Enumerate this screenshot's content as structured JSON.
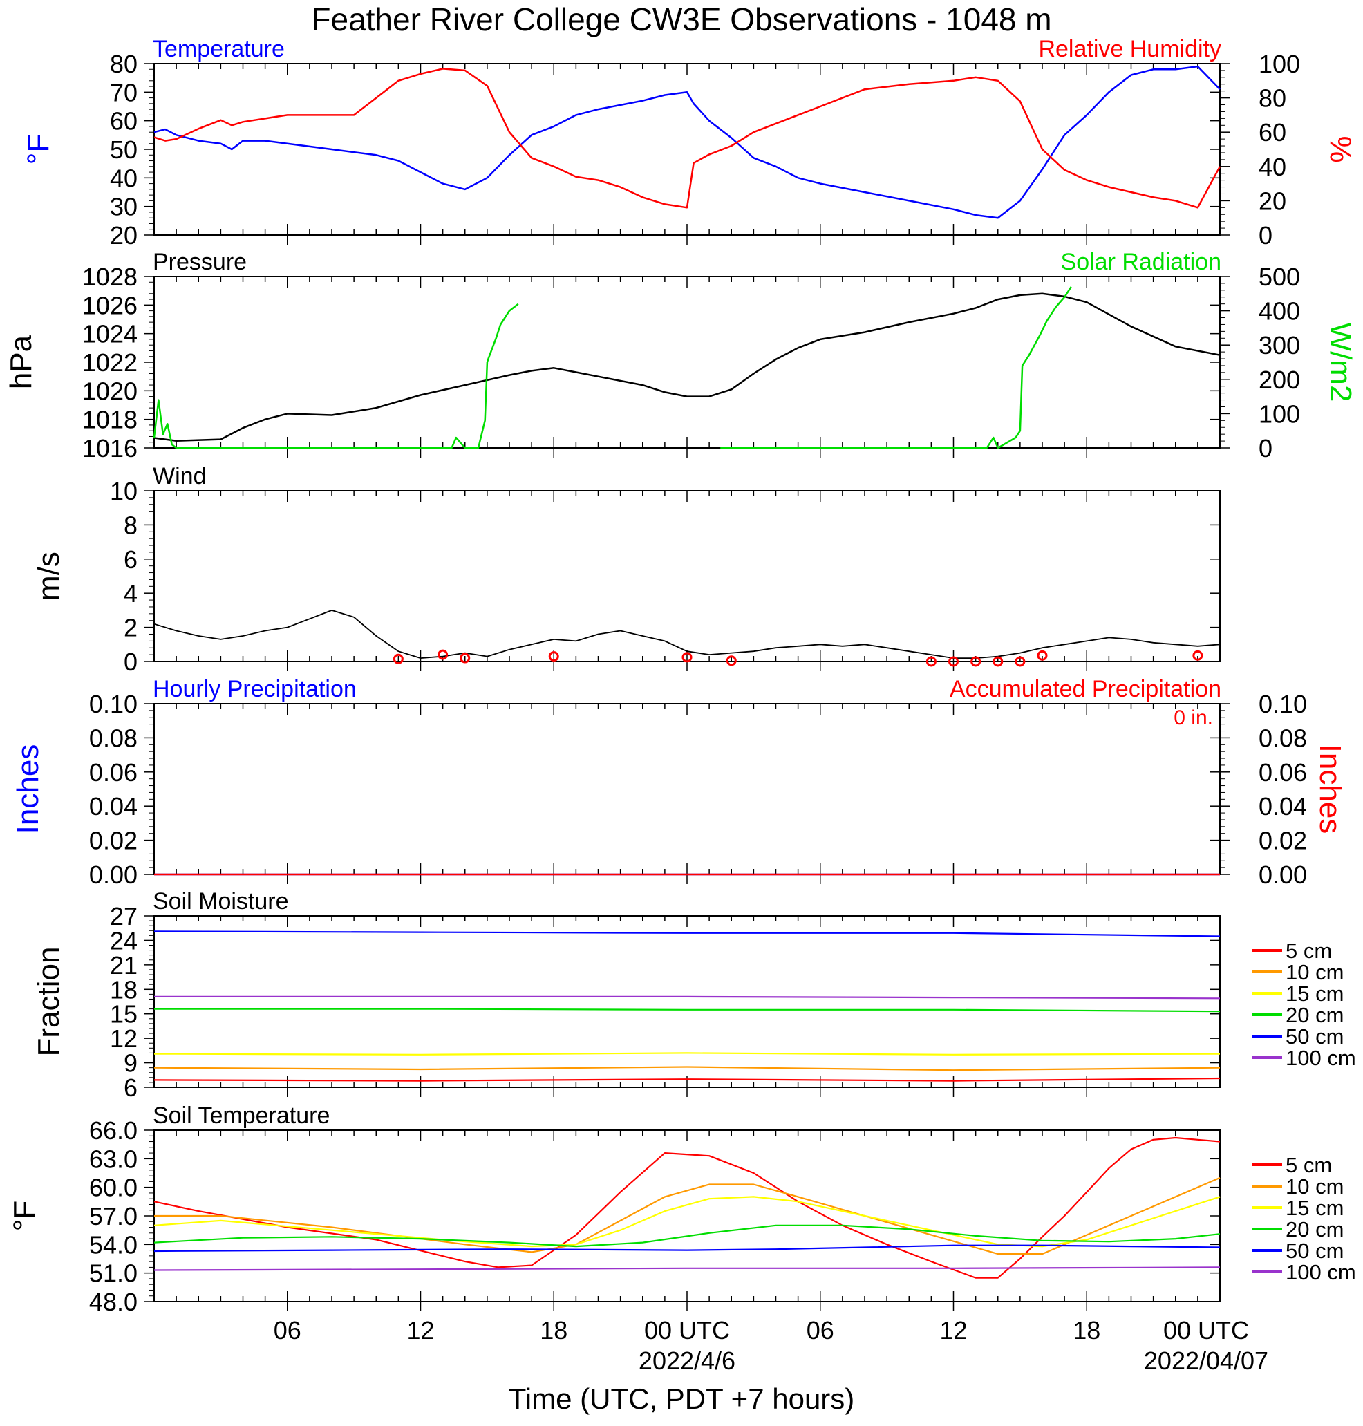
{
  "page": {
    "title": "Feather River College CW3E Observations - 1048 m",
    "xaxis_title": "Time (UTC, PDT +7 hours)",
    "x_ticks": [
      "06",
      "12",
      "18",
      "00 UTC",
      "06",
      "12",
      "18",
      "00 UTC"
    ],
    "date_labels": [
      "2022/4/6",
      "2022/04/07"
    ]
  },
  "colors": {
    "blue": "#0000ff",
    "red": "#ff0000",
    "green": "#00dd00",
    "black": "#000000",
    "orange": "#ff9900",
    "yellow": "#ffff00",
    "purple": "#9933cc"
  },
  "chart_data": [
    {
      "type": "line",
      "panel": "temperature_rh",
      "title_left": "Temperature",
      "title_right": "Relative Humidity",
      "ylabel_left": "°F",
      "ylabel_right": "%",
      "x_range_hours_utc": [
        0,
        48
      ],
      "ylim_left": [
        20,
        80
      ],
      "yticks_left": [
        20,
        30,
        40,
        50,
        60,
        70,
        80
      ],
      "ylim_right": [
        0,
        100
      ],
      "yticks_right": [
        0,
        20,
        40,
        60,
        80,
        100
      ],
      "series": [
        {
          "name": "Temperature",
          "axis": "left",
          "color": "#0000ff",
          "x": [
            0,
            0.5,
            1,
            2,
            3,
            3.5,
            4,
            5,
            6,
            8,
            10,
            11,
            12,
            13,
            14,
            15,
            16,
            17,
            18,
            19,
            20,
            22,
            23,
            24,
            24.3,
            25,
            26,
            27,
            28,
            29,
            30,
            32,
            34,
            36,
            37,
            38,
            39,
            40,
            41,
            42,
            43,
            44,
            45,
            46,
            47,
            48
          ],
          "y": [
            56,
            57,
            55,
            53,
            52,
            50,
            53,
            53,
            52,
            50,
            48,
            46,
            42,
            38,
            36,
            40,
            48,
            55,
            58,
            62,
            64,
            67,
            69,
            70,
            66,
            60,
            54,
            47,
            44,
            40,
            38,
            35,
            32,
            29,
            27,
            26,
            32,
            43,
            55,
            62,
            70,
            76,
            78,
            78,
            79,
            71
          ]
        },
        {
          "name": "Relative Humidity",
          "axis": "right",
          "color": "#ff0000",
          "x": [
            0,
            0.5,
            1,
            2,
            3,
            3.5,
            4,
            5,
            6,
            8,
            9,
            10,
            11,
            12,
            13,
            14,
            15,
            16,
            17,
            18,
            19,
            20,
            21,
            22,
            23,
            24,
            24.3,
            25,
            26,
            27,
            28,
            29,
            30,
            32,
            34,
            36,
            37,
            38,
            39,
            40,
            41,
            42,
            43,
            44,
            45,
            46,
            47,
            48
          ],
          "y": [
            57,
            55,
            56,
            62,
            67,
            64,
            66,
            68,
            70,
            70,
            70,
            80,
            90,
            94,
            97,
            96,
            87,
            60,
            45,
            40,
            34,
            32,
            28,
            22,
            18,
            16,
            42,
            47,
            52,
            60,
            65,
            70,
            75,
            85,
            88,
            90,
            92,
            90,
            78,
            50,
            38,
            32,
            28,
            25,
            22,
            20,
            16,
            40
          ]
        }
      ]
    },
    {
      "type": "line",
      "panel": "pressure_solar",
      "title_left": "Pressure",
      "title_right": "Solar Radiation",
      "ylabel_left": "hPa",
      "ylabel_right": "W/m2",
      "ylim_left": [
        1016,
        1028
      ],
      "yticks_left": [
        1016,
        1018,
        1020,
        1022,
        1024,
        1026,
        1028
      ],
      "ylim_right": [
        0,
        500
      ],
      "yticks_right": [
        0,
        100,
        200,
        300,
        400,
        500
      ],
      "series": [
        {
          "name": "Pressure",
          "axis": "left",
          "color": "#000000",
          "x": [
            0,
            1,
            3,
            4,
            5,
            6,
            8,
            10,
            12,
            14,
            16,
            17,
            18,
            19,
            20,
            22,
            23,
            24,
            25,
            26,
            27,
            28,
            29,
            30,
            32,
            34,
            36,
            37,
            38,
            39,
            40,
            41,
            42,
            44,
            46,
            48
          ],
          "y": [
            1016.7,
            1016.5,
            1016.6,
            1017.4,
            1018.0,
            1018.4,
            1018.3,
            1018.8,
            1019.7,
            1020.4,
            1021.1,
            1021.4,
            1021.6,
            1021.3,
            1021.0,
            1020.4,
            1019.9,
            1019.6,
            1019.6,
            1020.1,
            1021.2,
            1022.2,
            1023.0,
            1023.6,
            1024.1,
            1024.8,
            1025.4,
            1025.8,
            1026.4,
            1026.7,
            1026.8,
            1026.6,
            1026.2,
            1024.5,
            1023.1,
            1022.5
          ]
        },
        {
          "name": "Solar Radiation",
          "axis": "right",
          "color": "#00dd00",
          "segments": [
            {
              "x": [
                0,
                0.2,
                0.4,
                0.6,
                0.8,
                1.0,
                2.0,
                6,
                12,
                13.4,
                13.6,
                14.0,
                14.6,
                14.9,
                15.0,
                15.05,
                15.4,
                15.6,
                16.0,
                16.4
              ],
              "y": [
                30,
                140,
                40,
                70,
                10,
                0,
                0,
                0,
                0,
                0,
                30,
                0,
                0,
                80,
                250,
                260,
                320,
                360,
                400,
                420
              ]
            },
            {
              "x": [
                25.5,
                30,
                35,
                37.5,
                37.8,
                38.0,
                38.8,
                39.0,
                39.1,
                39.4,
                39.9,
                40.2,
                40.6,
                41.0,
                41.3
              ],
              "y": [
                0,
                0,
                0,
                0,
                30,
                0,
                30,
                50,
                240,
                270,
                330,
                370,
                410,
                440,
                470
              ]
            }
          ]
        }
      ]
    },
    {
      "type": "line",
      "panel": "wind",
      "title_left": "Wind",
      "ylabel_left": "m/s",
      "ylim_left": [
        0,
        10
      ],
      "yticks_left": [
        0,
        2,
        4,
        6,
        8,
        10
      ],
      "series": [
        {
          "name": "Wind Speed",
          "axis": "left",
          "color": "#000000",
          "x": [
            0,
            1,
            2,
            3,
            4,
            5,
            6,
            7,
            8,
            9,
            10,
            11,
            12,
            13,
            14,
            15,
            16,
            17,
            18,
            19,
            20,
            21,
            22,
            23,
            24,
            25,
            26,
            27,
            28,
            29,
            30,
            31,
            32,
            33,
            34,
            35,
            36,
            37,
            38,
            39,
            40,
            41,
            42,
            43,
            44,
            45,
            46,
            47,
            48
          ],
          "y": [
            2.2,
            1.8,
            1.5,
            1.3,
            1.5,
            1.8,
            2.0,
            2.5,
            3.0,
            2.6,
            1.5,
            0.6,
            0.2,
            0.3,
            0.5,
            0.3,
            0.7,
            1.0,
            1.3,
            1.2,
            1.6,
            1.8,
            1.5,
            1.2,
            0.6,
            0.4,
            0.5,
            0.6,
            0.8,
            0.9,
            1.0,
            0.9,
            1.0,
            0.8,
            0.6,
            0.4,
            0.2,
            0.2,
            0.3,
            0.5,
            0.8,
            1.0,
            1.2,
            1.4,
            1.3,
            1.1,
            1.0,
            0.9,
            1.0
          ]
        },
        {
          "name": "Calm markers",
          "color": "#ff0000",
          "x": [
            11,
            13,
            14,
            18,
            24,
            26,
            35,
            36,
            37,
            38,
            39,
            40,
            47
          ],
          "y": [
            0.15,
            0.4,
            0.2,
            0.3,
            0.25,
            0.05,
            0,
            0,
            0,
            0,
            0,
            0.35,
            0.35
          ]
        }
      ]
    },
    {
      "type": "line",
      "panel": "precipitation",
      "title_left": "Hourly Precipitation",
      "title_right": "Accumulated Precipitation",
      "total_label": "0 in.",
      "ylabel_left": "Inches",
      "ylabel_right": "Inches",
      "ylim_left": [
        0,
        0.1
      ],
      "yticks_left": [
        "0.00",
        "0.02",
        "0.04",
        "0.06",
        "0.08",
        "0.10"
      ],
      "yticks_right": [
        "0.00",
        "0.02",
        "0.04",
        "0.06",
        "0.08",
        "0.10"
      ],
      "series": [
        {
          "name": "Hourly Precipitation",
          "color": "#0000ff",
          "x": [
            0,
            48
          ],
          "y": [
            0,
            0
          ]
        },
        {
          "name": "Accumulated Precipitation",
          "color": "#ff0000",
          "x": [
            0,
            48
          ],
          "y": [
            0,
            0
          ]
        }
      ]
    },
    {
      "type": "line",
      "panel": "soil_moisture",
      "title_left": "Soil Moisture",
      "ylabel_left": "Fraction",
      "ylim_left": [
        6,
        27
      ],
      "yticks_left": [
        6,
        9,
        12,
        15,
        18,
        21,
        24,
        27
      ],
      "legend": [
        "5 cm",
        "10 cm",
        "15 cm",
        "20 cm",
        "50 cm",
        "100 cm"
      ],
      "series": [
        {
          "name": "5 cm",
          "color": "#ff0000",
          "x": [
            0,
            12,
            24,
            36,
            48
          ],
          "y": [
            6.9,
            6.8,
            7.0,
            6.8,
            7.1
          ]
        },
        {
          "name": "10 cm",
          "color": "#ff9900",
          "x": [
            0,
            12,
            24,
            36,
            48
          ],
          "y": [
            8.4,
            8.2,
            8.5,
            8.1,
            8.4
          ]
        },
        {
          "name": "15 cm",
          "color": "#ffff00",
          "x": [
            0,
            12,
            24,
            36,
            48
          ],
          "y": [
            10.1,
            10.0,
            10.2,
            10.0,
            10.1
          ]
        },
        {
          "name": "20 cm",
          "color": "#00dd00",
          "x": [
            0,
            12,
            24,
            36,
            48
          ],
          "y": [
            15.6,
            15.6,
            15.5,
            15.5,
            15.3
          ]
        },
        {
          "name": "50 cm",
          "color": "#0000ff",
          "x": [
            0,
            12,
            24,
            36,
            48
          ],
          "y": [
            25.1,
            25.0,
            24.9,
            24.9,
            24.5
          ]
        },
        {
          "name": "100 cm",
          "color": "#9933cc",
          "x": [
            0,
            12,
            24,
            36,
            48
          ],
          "y": [
            17.1,
            17.1,
            17.1,
            17.0,
            16.9
          ]
        }
      ]
    },
    {
      "type": "line",
      "panel": "soil_temperature",
      "title_left": "Soil Temperature",
      "ylabel_left": "°F",
      "ylim_left": [
        48,
        66
      ],
      "yticks_left": [
        "48.0",
        "51.0",
        "54.0",
        "57.0",
        "60.0",
        "63.0",
        "66.0"
      ],
      "legend": [
        "5 cm",
        "10 cm",
        "15 cm",
        "20 cm",
        "50 cm",
        "100 cm"
      ],
      "series": [
        {
          "name": "5 cm",
          "color": "#ff0000",
          "x": [
            0,
            2,
            6,
            10,
            14,
            15.5,
            17,
            19,
            21,
            23,
            25,
            27,
            29,
            31,
            33,
            35,
            37,
            38,
            39,
            40,
            41,
            42,
            43,
            44,
            45,
            46,
            47,
            48
          ],
          "y": [
            58.5,
            57.5,
            55.8,
            54.5,
            52.2,
            51.6,
            51.8,
            55,
            59.5,
            63.6,
            63.3,
            61.5,
            58.5,
            56.0,
            54.0,
            52.2,
            50.5,
            50.5,
            52.5,
            54.8,
            57.0,
            59.5,
            62.0,
            64.0,
            65.0,
            65.2,
            65.0,
            64.8
          ]
        },
        {
          "name": "10 cm",
          "color": "#ff9900",
          "x": [
            0,
            3,
            8,
            14,
            17,
            19,
            21,
            23,
            25,
            27,
            29,
            32,
            35,
            38,
            40,
            42,
            44,
            46,
            48
          ],
          "y": [
            57.0,
            57.0,
            55.8,
            54.0,
            53.2,
            54.0,
            56.5,
            59.0,
            60.3,
            60.3,
            59.0,
            57.0,
            55.0,
            53.0,
            53.0,
            55.0,
            57.0,
            59.0,
            61.0
          ]
        },
        {
          "name": "15 cm",
          "color": "#ffff00",
          "x": [
            0,
            3,
            8,
            14,
            17,
            19,
            21,
            23,
            25,
            27,
            29,
            32,
            35,
            38,
            40,
            42,
            44,
            46,
            48
          ],
          "y": [
            56.0,
            56.5,
            55.5,
            54.3,
            53.8,
            54.0,
            55.5,
            57.5,
            58.8,
            59.0,
            58.5,
            57.0,
            55.5,
            54.0,
            53.8,
            54.5,
            56.0,
            57.5,
            59.0
          ]
        },
        {
          "name": "20 cm",
          "color": "#00dd00",
          "x": [
            0,
            4,
            8,
            12,
            16,
            19,
            22,
            25,
            28,
            31,
            34,
            37,
            40,
            43,
            46,
            48
          ],
          "y": [
            54.2,
            54.7,
            54.8,
            54.6,
            54.2,
            53.8,
            54.2,
            55.2,
            56.0,
            56.0,
            55.6,
            54.9,
            54.4,
            54.3,
            54.6,
            55.1
          ]
        },
        {
          "name": "50 cm",
          "color": "#0000ff",
          "x": [
            0,
            8,
            16,
            24,
            28,
            32,
            36,
            40,
            44,
            48
          ],
          "y": [
            53.3,
            53.4,
            53.5,
            53.4,
            53.5,
            53.7,
            53.9,
            53.9,
            53.8,
            53.7
          ]
        },
        {
          "name": "100 cm",
          "color": "#9933cc",
          "x": [
            0,
            12,
            24,
            36,
            48
          ],
          "y": [
            51.3,
            51.4,
            51.5,
            51.5,
            51.6
          ]
        }
      ]
    }
  ]
}
